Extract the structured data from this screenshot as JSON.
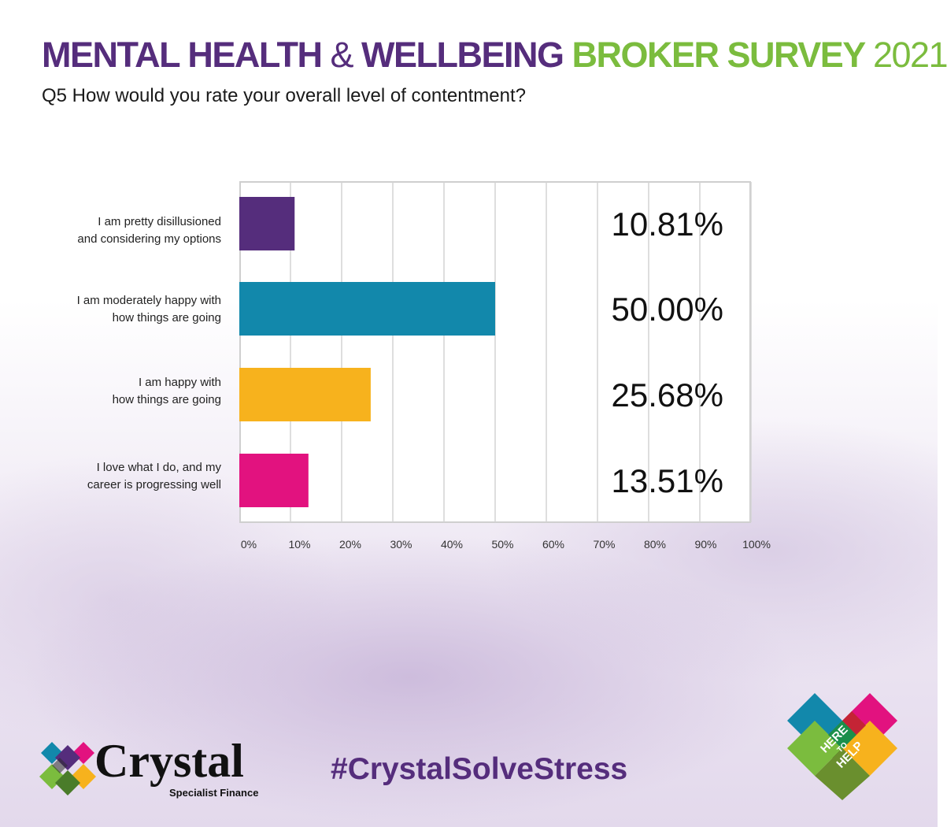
{
  "header": {
    "title_part1": "MENTAL HEALTH",
    "title_amp": "&",
    "title_part2": "WELLBEING",
    "title_part3": "BROKER SURVEY",
    "title_year": "2021",
    "question": "Q5 How would you rate your overall level of contentment?"
  },
  "colors": {
    "purple": "#552d7c",
    "teal": "#1288ab",
    "yellow": "#f7b21d",
    "magenta": "#e2127f",
    "green": "#7bbc3e"
  },
  "chart_data": {
    "type": "bar",
    "orientation": "horizontal",
    "categories": [
      [
        "I am pretty disillusioned",
        "and considering my options"
      ],
      [
        "I am moderately happy with",
        "how things are going"
      ],
      [
        "I am happy with",
        "how things are going"
      ],
      [
        "I love what I do, and my",
        "career is progressing well"
      ]
    ],
    "values": [
      10.81,
      50.0,
      25.68,
      13.51
    ],
    "value_labels": [
      "10.81%",
      "50.00%",
      "25.68%",
      "13.51%"
    ],
    "bar_colors": [
      "#552d7c",
      "#1288ab",
      "#f7b21d",
      "#e2127f"
    ],
    "xlim": [
      0,
      100
    ],
    "x_ticks": [
      "0%",
      "10%",
      "20%",
      "30%",
      "40%",
      "50%",
      "60%",
      "70%",
      "80%",
      "90%",
      "100%"
    ],
    "grid": true
  },
  "footer": {
    "hashtag": "#CrystalSolveStress",
    "brand_name": "Crystal",
    "brand_sub": "Specialist Finance",
    "badge_text": [
      "HERE",
      "TO",
      "HELP"
    ]
  }
}
